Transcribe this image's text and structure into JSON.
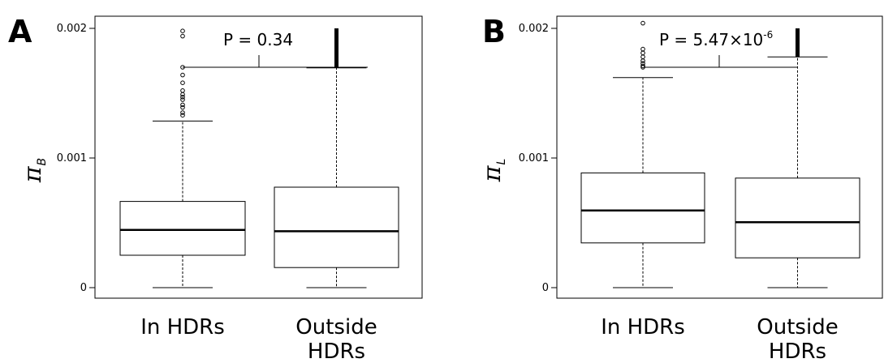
{
  "chart_data": [
    {
      "type": "box",
      "panel_label": "A",
      "ylabel": "π",
      "ylabel_sub": "B",
      "ylim": [
        0,
        0.002
      ],
      "yticks": [
        0,
        0.001,
        0.002
      ],
      "ytick_labels": [
        "0",
        "0.001",
        "0.002"
      ],
      "categories": [
        "In HDRs",
        "Outside\nHDRs"
      ],
      "category_lines": [
        [
          "In HDRs"
        ],
        [
          "Outside",
          "HDRs"
        ]
      ],
      "boxes": [
        {
          "q1": 0.00025,
          "median": 0.000445,
          "q3": 0.000665,
          "whisker_low": 0.0,
          "whisker_high": 0.001285,
          "outliers": [
            0.00133,
            0.00135,
            0.00139,
            0.00141,
            0.00145,
            0.00147,
            0.00149,
            0.00152,
            0.00158,
            0.00164,
            0.0017,
            0.00194,
            0.00198
          ]
        },
        {
          "q1": 0.000155,
          "median": 0.000435,
          "q3": 0.000775,
          "whisker_low": 0.0,
          "whisker_high": 0.001695,
          "outlier_band": [
            0.0017,
            0.002
          ]
        }
      ],
      "annotation": {
        "text": "P = 0.34",
        "superscript": ""
      }
    },
    {
      "type": "box",
      "panel_label": "B",
      "ylabel": "π",
      "ylabel_sub": "L",
      "ylim": [
        0,
        0.002
      ],
      "yticks": [
        0,
        0.001,
        0.002
      ],
      "ytick_labels": [
        "0",
        "0.001",
        "0.002"
      ],
      "categories": [
        "In HDRs",
        "Outside\nHDRs"
      ],
      "category_lines": [
        [
          "In HDRs"
        ],
        [
          "Outside",
          "HDRs"
        ]
      ],
      "boxes": [
        {
          "q1": 0.000345,
          "median": 0.000595,
          "q3": 0.000885,
          "whisker_low": 0.0,
          "whisker_high": 0.00162,
          "outliers": [
            0.0017,
            0.00171,
            0.00173,
            0.00175,
            0.00178,
            0.00181,
            0.00184,
            0.00204
          ]
        },
        {
          "q1": 0.00023,
          "median": 0.000505,
          "q3": 0.000845,
          "whisker_low": 0.0,
          "whisker_high": 0.00178,
          "outlier_band": [
            0.00178,
            0.002
          ]
        }
      ],
      "annotation": {
        "text": "P = 5.47×10",
        "superscript": "-6"
      }
    }
  ]
}
